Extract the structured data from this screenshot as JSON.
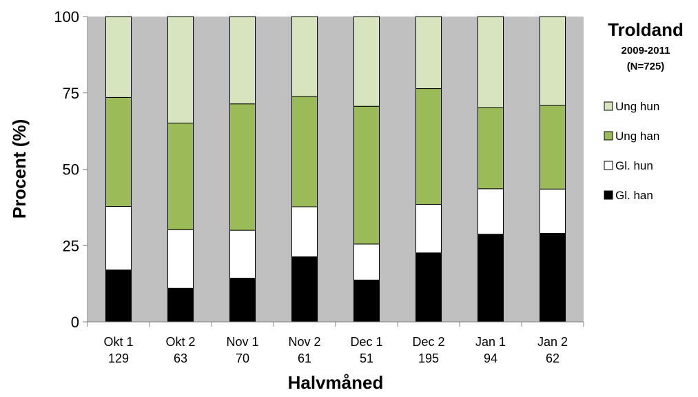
{
  "chart_data": {
    "type": "bar",
    "stacked": true,
    "percent": true,
    "title": "Troldand",
    "subtitle_lines": [
      "2009-2011",
      "(N=725)"
    ],
    "xlabel": "Halvmåned",
    "ylabel": "Procent (%)",
    "ylim": [
      0,
      100
    ],
    "yticks": [
      0,
      25,
      50,
      75,
      100
    ],
    "categories": [
      "Okt 1",
      "Okt 2",
      "Nov 1",
      "Nov 2",
      "Dec 1",
      "Dec 2",
      "Jan 1",
      "Jan 2"
    ],
    "category_counts": [
      "129",
      "63",
      "70",
      "61",
      "51",
      "195",
      "94",
      "62"
    ],
    "series": [
      {
        "name": "Gl. han",
        "color": "#000000",
        "values": [
          17,
          11,
          14.3,
          21.3,
          13.7,
          22.6,
          28.7,
          29
        ]
      },
      {
        "name": "Gl. hun",
        "color": "#ffffff",
        "values": [
          20.8,
          19.2,
          15.7,
          16.4,
          11.8,
          15.9,
          14.9,
          14.5
        ]
      },
      {
        "name": "Ung han",
        "color": "#9bbb59",
        "values": [
          35.7,
          34.9,
          41.4,
          36.1,
          45.1,
          37.9,
          26.6,
          27.4
        ]
      },
      {
        "name": "Ung hun",
        "color": "#d7e4bd",
        "values": [
          26.5,
          34.9,
          28.6,
          26.2,
          29.4,
          23.6,
          29.8,
          29.1
        ]
      }
    ],
    "legend_order": [
      "Ung hun",
      "Ung han",
      "Gl. hun",
      "Gl. han"
    ],
    "plot_background": "#c0c0c0",
    "grid": false,
    "legend_position": "right"
  }
}
